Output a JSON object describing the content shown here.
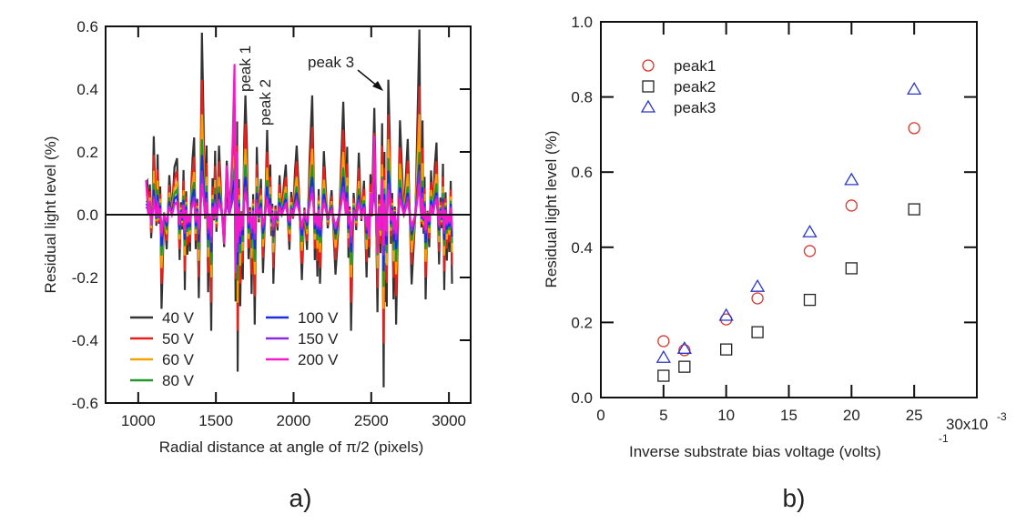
{
  "chart_data": [
    {
      "type": "line",
      "panel_label": "a)",
      "xlabel": "Radial distance at angle of π/2 (pixels)",
      "ylabel": "Residual light level (%)",
      "xlim": [
        790,
        3140
      ],
      "ylim": [
        -0.6,
        0.6
      ],
      "xticks": [
        "1000",
        "1500",
        "2000",
        "2500",
        "3000"
      ],
      "yticks": [
        "0.6",
        "0.4",
        "0.2",
        "0.0",
        "-0.2",
        "-0.4",
        "-0.6"
      ],
      "grid": false,
      "legend_placement": "bottom-left",
      "annotations": [
        "peak 1",
        "peak 2",
        "peak 3"
      ],
      "x": [
        1050,
        1100,
        1150,
        1250,
        1300,
        1350,
        1410,
        1470,
        1520,
        1620,
        1640,
        1690,
        1750,
        1830,
        1870,
        1950,
        2020,
        2120,
        2170,
        2320,
        2370,
        2470,
        2520,
        2580,
        2610,
        2660,
        2810,
        2850,
        2920,
        2970,
        3020
      ],
      "series": [
        {
          "name": "40 V",
          "color": "#333333",
          "values": [
            0.1,
            0.25,
            -0.3,
            0.18,
            -0.24,
            0.18,
            0.58,
            -0.37,
            0.22,
            0.35,
            -0.5,
            0.38,
            -0.35,
            0.27,
            -0.22,
            0.16,
            0.22,
            0.38,
            -0.22,
            0.36,
            -0.37,
            -0.2,
            0.34,
            -0.55,
            0.43,
            -0.35,
            0.59,
            -0.27,
            0.23,
            -0.24,
            -0.22
          ]
        },
        {
          "name": "50 V",
          "color": "#e8201a",
          "values": [
            0.08,
            0.19,
            -0.22,
            0.14,
            -0.18,
            0.14,
            0.43,
            -0.28,
            0.17,
            0.26,
            -0.37,
            0.29,
            -0.26,
            0.2,
            -0.17,
            0.12,
            0.17,
            0.28,
            -0.17,
            0.27,
            -0.28,
            -0.15,
            0.26,
            -0.41,
            0.32,
            -0.26,
            0.41,
            -0.2,
            0.17,
            -0.18,
            -0.16
          ]
        },
        {
          "name": "60 V",
          "color": "#f5a300",
          "values": [
            0.06,
            0.14,
            -0.17,
            0.1,
            -0.13,
            0.1,
            0.32,
            -0.2,
            0.12,
            0.19,
            -0.28,
            0.21,
            -0.19,
            0.15,
            -0.12,
            0.09,
            0.12,
            0.21,
            -0.12,
            0.2,
            -0.2,
            -0.11,
            0.19,
            -0.3,
            0.24,
            -0.19,
            0.32,
            -0.15,
            0.13,
            -0.13,
            -0.12
          ]
        },
        {
          "name": "80 V",
          "color": "#1f9a2a",
          "values": [
            0.04,
            0.1,
            -0.13,
            0.08,
            -0.1,
            0.08,
            0.24,
            -0.16,
            0.09,
            0.15,
            -0.21,
            0.16,
            -0.15,
            0.11,
            -0.09,
            0.07,
            0.09,
            0.16,
            -0.09,
            0.15,
            -0.16,
            -0.08,
            0.14,
            -0.23,
            0.18,
            -0.15,
            0.2,
            -0.11,
            0.1,
            -0.1,
            -0.09
          ]
        },
        {
          "name": "100 V",
          "color": "#1a2ee0",
          "values": [
            0.03,
            0.08,
            -0.1,
            0.06,
            -0.08,
            0.06,
            0.19,
            -0.12,
            0.07,
            0.11,
            -0.16,
            0.12,
            -0.11,
            0.09,
            -0.07,
            0.05,
            0.07,
            0.12,
            -0.07,
            0.12,
            -0.12,
            -0.06,
            0.11,
            -0.18,
            0.14,
            -0.11,
            0.16,
            -0.09,
            0.07,
            -0.08,
            -0.07
          ]
        },
        {
          "name": "150 V",
          "color": "#8a2be2",
          "values": [
            0.02,
            0.06,
            -0.07,
            0.04,
            -0.06,
            0.04,
            0.14,
            -0.09,
            0.05,
            0.08,
            -0.12,
            0.09,
            -0.08,
            0.06,
            -0.05,
            0.04,
            0.05,
            0.09,
            -0.05,
            0.09,
            -0.09,
            -0.05,
            0.08,
            -0.13,
            0.1,
            -0.08,
            0.14,
            -0.06,
            0.06,
            -0.06,
            -0.05
          ]
        },
        {
          "name": "200 V",
          "color": "#f01ec8",
          "values": [
            0.11,
            0.05,
            -0.06,
            0.04,
            -0.05,
            0.03,
            0.1,
            -0.07,
            0.04,
            0.48,
            -0.09,
            0.07,
            -0.06,
            0.05,
            -0.04,
            0.03,
            0.04,
            0.07,
            -0.04,
            0.07,
            -0.07,
            -0.04,
            0.25,
            -0.1,
            0.08,
            -0.06,
            0.1,
            -0.05,
            0.05,
            -0.05,
            -0.04
          ]
        }
      ]
    },
    {
      "type": "scatter",
      "panel_label": "b)",
      "xlabel": "Inverse substrate bias voltage (volts)",
      "xlabel_superscript": "-1",
      "x_multiplier": "30x10",
      "x_multiplier_exp": "-3",
      "ylabel": "Residual light level (%)",
      "xlim": [
        0,
        0.03
      ],
      "ylim": [
        0.0,
        1.0
      ],
      "xticks": [
        "0",
        "5",
        "10",
        "15",
        "20",
        "25"
      ],
      "yticks": [
        "1.0",
        "0.8",
        "0.6",
        "0.4",
        "0.2",
        "0.0"
      ],
      "grid": false,
      "legend_placement": "top-left",
      "x": [
        0.005,
        0.00667,
        0.01,
        0.0125,
        0.01667,
        0.02,
        0.025
      ],
      "series": [
        {
          "name": "peak1",
          "marker": "circle",
          "color": "#d9342b",
          "values": [
            0.15,
            0.126,
            0.208,
            0.264,
            0.39,
            0.511,
            0.717
          ]
        },
        {
          "name": "peak2",
          "marker": "square",
          "color": "#222222",
          "values": [
            0.058,
            0.082,
            0.128,
            0.174,
            0.26,
            0.344,
            0.501
          ]
        },
        {
          "name": "peak3",
          "marker": "triangle",
          "color": "#2b36c8",
          "values": [
            0.106,
            0.13,
            0.218,
            0.295,
            0.44,
            0.579,
            0.82
          ]
        }
      ]
    }
  ]
}
